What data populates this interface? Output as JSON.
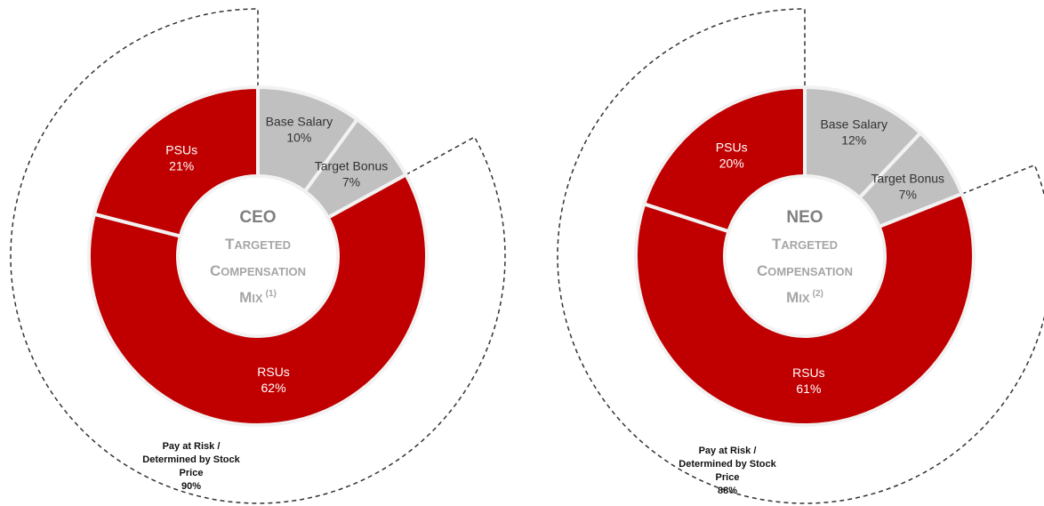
{
  "chart_data": [
    {
      "type": "pie",
      "center_title": "CEO",
      "center_subtitle": [
        "Targeted",
        "Compensation",
        "Mix"
      ],
      "center_footnote": "(1)",
      "slices": [
        {
          "label": "Base Salary",
          "value": 10,
          "value_label": "10%"
        },
        {
          "label": "Target Bonus",
          "value": 7,
          "value_label": "7%"
        },
        {
          "label": "RSUs",
          "value": 62,
          "value_label": "62%"
        },
        {
          "label": "PSUs",
          "value": 21,
          "value_label": "21%"
        }
      ],
      "pay_at_risk": {
        "label": [
          "Pay at Risk /",
          "Determined by Stock",
          "Price"
        ],
        "value": 90,
        "value_label": "90%"
      }
    },
    {
      "type": "pie",
      "center_title": "NEO",
      "center_subtitle": [
        "Targeted",
        "Compensation",
        "Mix"
      ],
      "center_footnote": "(2)",
      "slices": [
        {
          "label": "Base Salary",
          "value": 12,
          "value_label": "12%"
        },
        {
          "label": "Target Bonus",
          "value": 7,
          "value_label": "7%"
        },
        {
          "label": "RSUs",
          "value": 61,
          "value_label": "61%"
        },
        {
          "label": "PSUs",
          "value": 20,
          "value_label": "20%"
        }
      ],
      "pay_at_risk": {
        "label": [
          "Pay at Risk /",
          "Determined by Stock",
          "Price"
        ],
        "value": 88,
        "value_label": "88%"
      }
    }
  ],
  "colors": {
    "base_salary": "#c0c0c0",
    "target_bonus": "#c0c0c0",
    "rsus": "#c00000",
    "psus": "#c00000",
    "separator": "#f2f2f2",
    "dashed_outline": "#333333"
  }
}
